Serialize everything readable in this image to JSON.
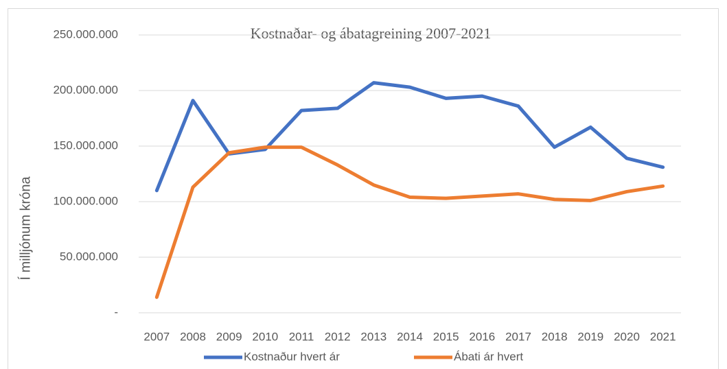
{
  "chart_data": {
    "type": "line",
    "title": "Kostnaðar- og ábatagreining 2007-2021",
    "y_label": "Í milljónum króna",
    "categories": [
      "2007",
      "2008",
      "2009",
      "2010",
      "2011",
      "2012",
      "2013",
      "2014",
      "2015",
      "2016",
      "2017",
      "2018",
      "2019",
      "2020",
      "2021"
    ],
    "series": [
      {
        "name": "Kostnaður hvert ár",
        "color": "#4472c4",
        "values": [
          110000000,
          191000000,
          143000000,
          147000000,
          182000000,
          184000000,
          207000000,
          203000000,
          193000000,
          195000000,
          186000000,
          149000000,
          167000000,
          139000000,
          131000000
        ]
      },
      {
        "name": "Ábati ár hvert",
        "color": "#ed7d31",
        "values": [
          14000000,
          113000000,
          144000000,
          149000000,
          149000000,
          133000000,
          115000000,
          104000000,
          103000000,
          105000000,
          107000000,
          102000000,
          101000000,
          109000000,
          114000000
        ]
      }
    ],
    "ylim": [
      0,
      250000000
    ],
    "yticks": [
      {
        "value": 0,
        "label": "-"
      },
      {
        "value": 50000000,
        "label": "50.000.000"
      },
      {
        "value": 100000000,
        "label": "100.000.000"
      },
      {
        "value": 150000000,
        "label": "150.000.000"
      },
      {
        "value": 200000000,
        "label": "200.000.000"
      },
      {
        "value": 250000000,
        "label": "250.000.000"
      }
    ],
    "grid": true,
    "legend": "bottom"
  }
}
